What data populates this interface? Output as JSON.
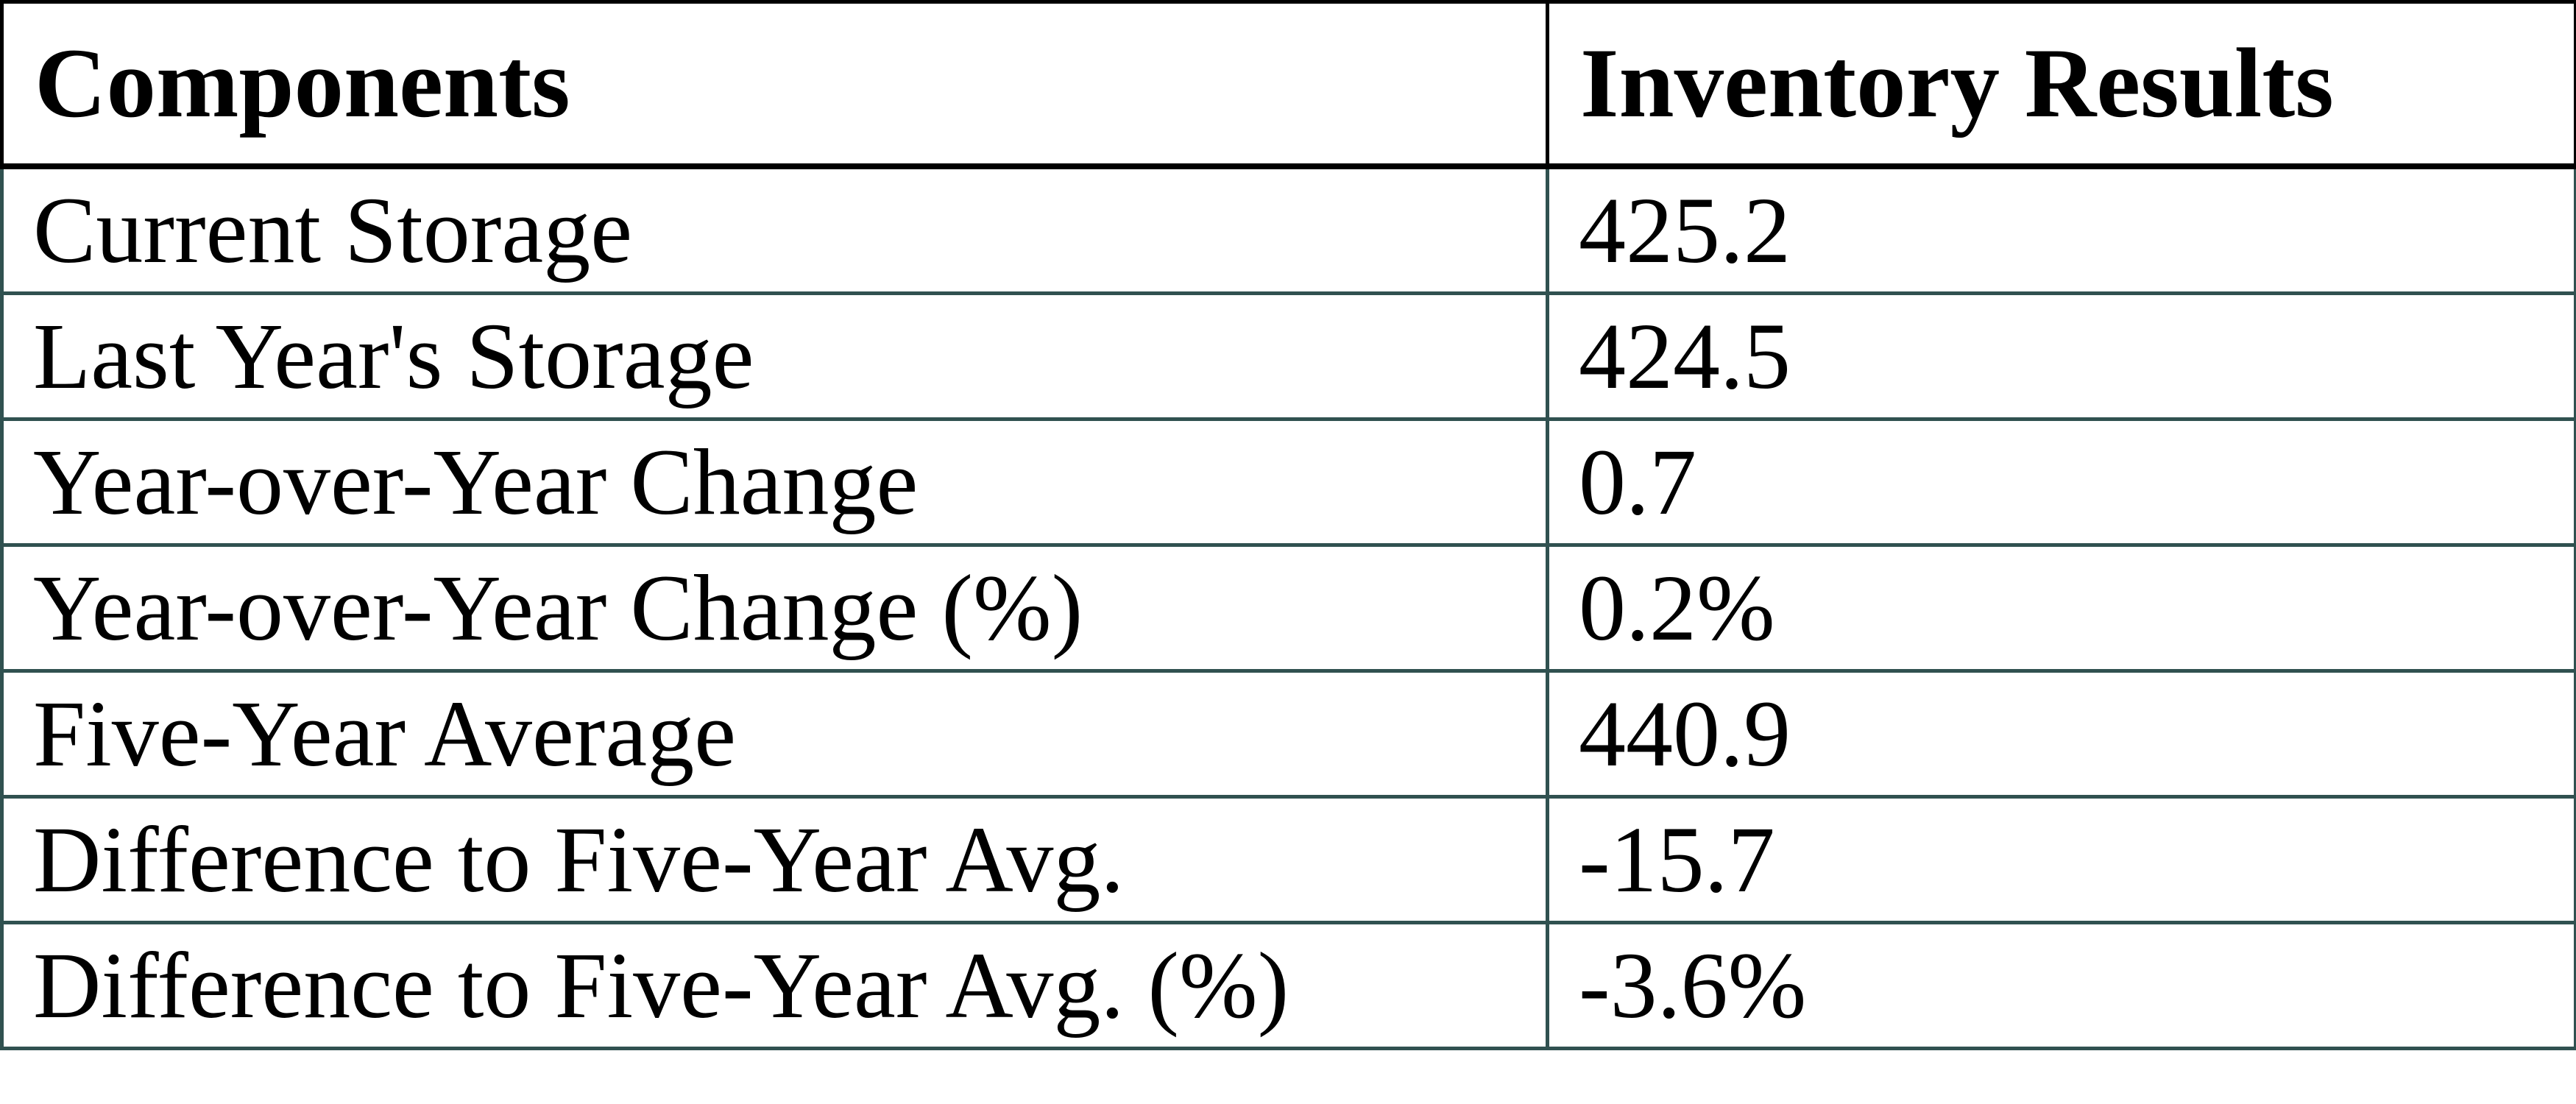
{
  "table": {
    "columns": [
      {
        "label": "Components"
      },
      {
        "label": "Inventory Results"
      }
    ],
    "rows": [
      {
        "label": "Current Storage",
        "value": "425.2"
      },
      {
        "label": "Last Year's Storage",
        "value": "424.5"
      },
      {
        "label": "Year-over-Year Change",
        "value": "0.7"
      },
      {
        "label": "Year-over-Year Change (%)",
        "value": "0.2%"
      },
      {
        "label": "Five-Year Average",
        "value": "440.9"
      },
      {
        "label": "Difference to Five-Year Avg.",
        "value": "-15.7"
      },
      {
        "label": "Difference to Five-Year Avg. (%)",
        "value": "-3.6%"
      }
    ],
    "colors": {
      "header_border": "#000000",
      "body_border": "#305150",
      "text": "#000000",
      "background": "#ffffff"
    }
  },
  "chart_data": {
    "type": "table",
    "title": "",
    "columns": [
      "Components",
      "Inventory Results"
    ],
    "categories": [
      "Current Storage",
      "Last Year's Storage",
      "Year-over-Year Change",
      "Year-over-Year Change (%)",
      "Five-Year Average",
      "Difference to Five-Year Avg.",
      "Difference to Five-Year Avg. (%)"
    ],
    "values": [
      425.2,
      424.5,
      0.7,
      "0.2%",
      440.9,
      -15.7,
      "-3.6%"
    ],
    "layout_hints": {
      "header_bold": true,
      "header_border_color": "#000000",
      "row_border_color": "#305150",
      "text_align": "left",
      "grid": "horizontal-rules-and-single-column-divider"
    }
  }
}
